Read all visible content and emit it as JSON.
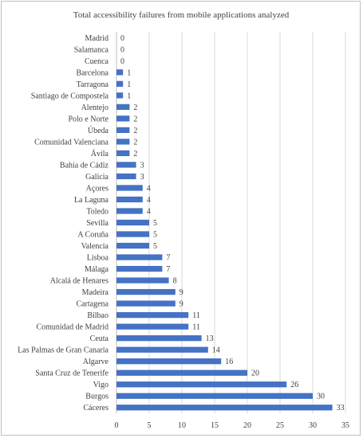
{
  "chart_data": {
    "type": "bar",
    "orientation": "horizontal",
    "title": "Total accessibility failures from mobile applications analyzed",
    "xlabel": "",
    "ylabel": "",
    "xlim": [
      0,
      35
    ],
    "x_ticks": [
      0,
      5,
      10,
      15,
      20,
      25,
      30,
      35
    ],
    "grid": "vertical",
    "legend": "none",
    "bar_color": "#4472c4",
    "categories": [
      "Madrid",
      "Salamanca",
      "Cuenca",
      "Barcelona",
      "Tarragona",
      "Santiago de Compostela",
      "Alentejo",
      "Polo e Norte",
      "Úbeda",
      "Comunidad Valenciana",
      "Ávila",
      "Bahía de Cádiz",
      "Galicia",
      "Açores",
      "La Laguna",
      "Toledo",
      "Sevilla",
      "A Coruña",
      "Valencia",
      "Lisboa",
      "Málaga",
      "Alcalá de Henares",
      "Madeira",
      "Cartagena",
      "Bilbao",
      "Comunidad de Madrid",
      "Ceuta",
      "Las Palmas de Gran Canaria",
      "Algarve",
      "Santa Cruz de Tenerife",
      "Vigo",
      "Burgos",
      "Cáceres"
    ],
    "values": [
      0,
      0,
      0,
      1,
      1,
      1,
      2,
      2,
      2,
      2,
      2,
      3,
      3,
      4,
      4,
      4,
      5,
      5,
      5,
      7,
      7,
      8,
      9,
      9,
      11,
      11,
      13,
      14,
      16,
      20,
      26,
      30,
      33
    ]
  }
}
